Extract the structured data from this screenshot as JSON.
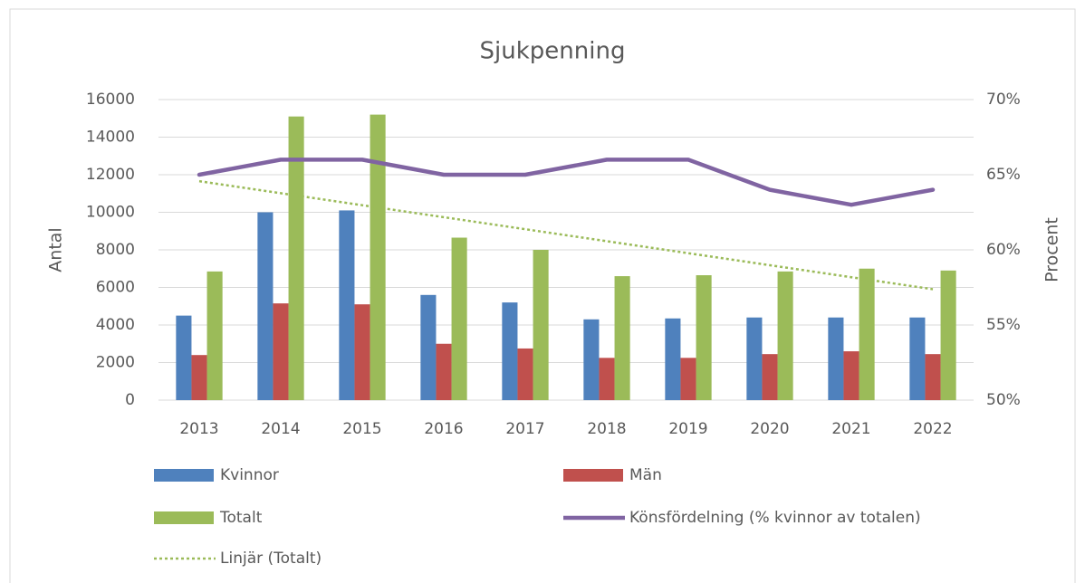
{
  "chart_data": {
    "type": "bar",
    "title": "Sjukpenning",
    "y_label": "Antal",
    "y2_label": "Procent",
    "categories": [
      "2013",
      "2014",
      "2015",
      "2016",
      "2017",
      "2018",
      "2019",
      "2020",
      "2021",
      "2022"
    ],
    "ylim": [
      0,
      16000
    ],
    "yticks": [
      0,
      2000,
      4000,
      6000,
      8000,
      10000,
      12000,
      14000,
      16000
    ],
    "y2lim": [
      50,
      70
    ],
    "y2ticks": [
      {
        "value": 50,
        "label": "50%"
      },
      {
        "value": 55,
        "label": "55%"
      },
      {
        "value": 60,
        "label": "60%"
      },
      {
        "value": 65,
        "label": "65%"
      },
      {
        "value": 70,
        "label": "70%"
      }
    ],
    "grid": true,
    "series": [
      {
        "name": "Kvinnor",
        "type": "bar",
        "color": "#4f81bd",
        "values": [
          4500,
          10000,
          10100,
          5600,
          5200,
          4300,
          4350,
          4400,
          4400,
          4400
        ]
      },
      {
        "name": "Män",
        "type": "bar",
        "color": "#c0504d",
        "values": [
          2400,
          5150,
          5100,
          3000,
          2750,
          2250,
          2250,
          2450,
          2600,
          2450
        ]
      },
      {
        "name": "Totalt",
        "type": "bar",
        "color": "#9bbb59",
        "values": [
          6850,
          15100,
          15200,
          8650,
          8000,
          6600,
          6650,
          6850,
          7000,
          6900
        ]
      },
      {
        "name": "Könsfördelning (% kvinnor av totalen)",
        "type": "line",
        "axis": "y2",
        "color": "#8064a2",
        "values": [
          65,
          66,
          66,
          65,
          65,
          66,
          66,
          64,
          63,
          64
        ]
      },
      {
        "name": "Linjär (Totalt)",
        "type": "line",
        "style": "dotted",
        "color": "#9bbb59",
        "values": [
          11655,
          11016,
          10377,
          9738,
          9099,
          8461,
          7822,
          7183,
          6544,
          5905
        ]
      }
    ]
  }
}
